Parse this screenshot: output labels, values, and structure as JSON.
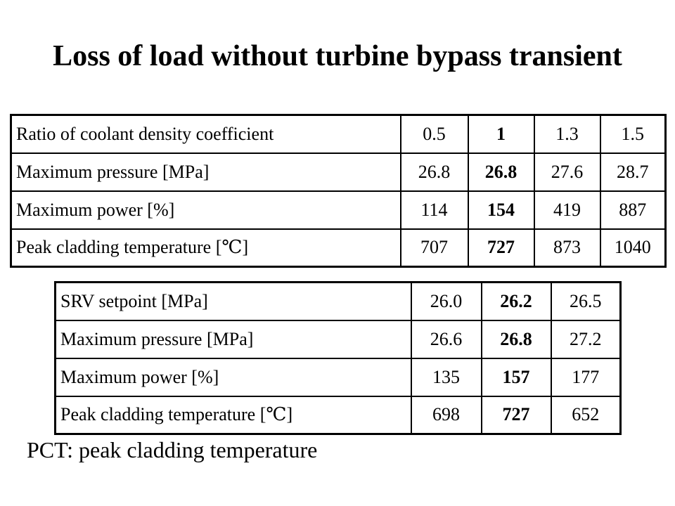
{
  "title": "Loss of load without turbine bypass transient",
  "table1": {
    "rows": [
      {
        "label": "Ratio of coolant density coefficient",
        "values": [
          "0.5",
          "1",
          "1.3",
          "1.5"
        ]
      },
      {
        "label": "Maximum pressure [MPa]",
        "values": [
          "26.8",
          "26.8",
          "27.6",
          "28.7"
        ]
      },
      {
        "label": "Maximum power [%]",
        "values": [
          "114",
          "154",
          "419",
          "887"
        ]
      },
      {
        "label": "Peak cladding temperature [℃]",
        "values": [
          "707",
          "727",
          "873",
          "1040"
        ]
      }
    ],
    "highlight_column": 2
  },
  "table2": {
    "rows": [
      {
        "label": "SRV setpoint [MPa]",
        "values": [
          "26.0",
          "26.2",
          "26.5"
        ]
      },
      {
        "label": "Maximum pressure [MPa]",
        "values": [
          "26.6",
          "26.8",
          "27.2"
        ]
      },
      {
        "label": "Maximum power [%]",
        "values": [
          "135",
          "157",
          "177"
        ]
      },
      {
        "label": "Peak cladding temperature [℃]",
        "values": [
          "698",
          "727",
          "652"
        ]
      }
    ],
    "highlight_column": 2
  },
  "footnote": "PCT: peak cladding temperature"
}
